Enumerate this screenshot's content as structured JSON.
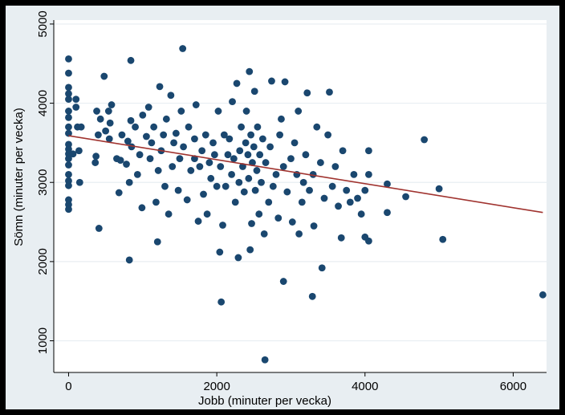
{
  "chart_data": {
    "type": "scatter",
    "xlabel": "Jobb (minuter per vecka)",
    "ylabel": "Sömn (minuter per vecka)",
    "xlim": [
      -200,
      6450
    ],
    "ylim": [
      600,
      5050
    ],
    "xticks": [
      0,
      2000,
      4000,
      6000
    ],
    "yticks": [
      1000,
      2000,
      3000,
      4000,
      5000
    ],
    "grid": "horizontal",
    "legend": "none",
    "colors": {
      "points": "#1a476f",
      "fit_line": "#a0332f",
      "background": "#e8eef2",
      "plot_area": "#ffffff",
      "frame": "#000000"
    },
    "fit_line": {
      "x": [
        0,
        6400
      ],
      "y": [
        3590,
        2620
      ]
    },
    "series": [
      {
        "values": [
          [
            0,
            4560
          ],
          [
            0,
            4380
          ],
          [
            0,
            4200
          ],
          [
            0,
            4120
          ],
          [
            0,
            4050
          ],
          [
            0,
            3900
          ],
          [
            0,
            3820
          ],
          [
            0,
            3700
          ],
          [
            0,
            3620
          ],
          [
            0,
            3480
          ],
          [
            0,
            3420
          ],
          [
            0,
            3360
          ],
          [
            0,
            3300
          ],
          [
            0,
            3220
          ],
          [
            0,
            3100
          ],
          [
            0,
            3020
          ],
          [
            0,
            2960
          ],
          [
            0,
            2780
          ],
          [
            0,
            2720
          ],
          [
            0,
            2660
          ],
          [
            60,
            3360
          ],
          [
            100,
            4050
          ],
          [
            100,
            3950
          ],
          [
            120,
            3700
          ],
          [
            140,
            3400
          ],
          [
            150,
            3000
          ],
          [
            170,
            3700
          ],
          [
            360,
            3250
          ],
          [
            370,
            3330
          ],
          [
            380,
            3900
          ],
          [
            400,
            3600
          ],
          [
            410,
            2420
          ],
          [
            430,
            3800
          ],
          [
            480,
            4340
          ],
          [
            500,
            3650
          ],
          [
            540,
            3900
          ],
          [
            550,
            3550
          ],
          [
            560,
            3750
          ],
          [
            580,
            3980
          ],
          [
            650,
            3300
          ],
          [
            680,
            2870
          ],
          [
            700,
            3280
          ],
          [
            720,
            3600
          ],
          [
            780,
            3230
          ],
          [
            800,
            3520
          ],
          [
            820,
            2020
          ],
          [
            820,
            3000
          ],
          [
            840,
            3780
          ],
          [
            840,
            4540
          ],
          [
            850,
            3450
          ],
          [
            900,
            3700
          ],
          [
            930,
            3100
          ],
          [
            960,
            3350
          ],
          [
            990,
            2680
          ],
          [
            1000,
            3850
          ],
          [
            1050,
            3580
          ],
          [
            1080,
            3950
          ],
          [
            1100,
            3300
          ],
          [
            1120,
            3500
          ],
          [
            1150,
            3700
          ],
          [
            1180,
            2750
          ],
          [
            1200,
            2250
          ],
          [
            1210,
            3150
          ],
          [
            1230,
            4210
          ],
          [
            1250,
            3400
          ],
          [
            1280,
            3600
          ],
          [
            1300,
            2950
          ],
          [
            1320,
            3800
          ],
          [
            1350,
            2600
          ],
          [
            1380,
            4100
          ],
          [
            1400,
            3200
          ],
          [
            1420,
            3500
          ],
          [
            1450,
            3620
          ],
          [
            1480,
            2900
          ],
          [
            1500,
            3300
          ],
          [
            1520,
            3900
          ],
          [
            1540,
            4690
          ],
          [
            1550,
            3450
          ],
          [
            1600,
            2780
          ],
          [
            1620,
            3700
          ],
          [
            1650,
            3150
          ],
          [
            1700,
            3300
          ],
          [
            1700,
            3550
          ],
          [
            1720,
            3980
          ],
          [
            1750,
            2510
          ],
          [
            1770,
            3200
          ],
          [
            1800,
            3400
          ],
          [
            1820,
            2850
          ],
          [
            1850,
            3600
          ],
          [
            1870,
            2600
          ],
          [
            1900,
            3250
          ],
          [
            1920,
            3050
          ],
          [
            1950,
            3500
          ],
          [
            1970,
            3350
          ],
          [
            2000,
            2950
          ],
          [
            2020,
            3900
          ],
          [
            2040,
            2120
          ],
          [
            2050,
            3200
          ],
          [
            2060,
            1490
          ],
          [
            2080,
            2460
          ],
          [
            2100,
            3600
          ],
          [
            2120,
            2950
          ],
          [
            2150,
            3350
          ],
          [
            2170,
            3550
          ],
          [
            2200,
            3100
          ],
          [
            2210,
            4020
          ],
          [
            2230,
            3300
          ],
          [
            2250,
            2750
          ],
          [
            2270,
            4250
          ],
          [
            2290,
            2050
          ],
          [
            2300,
            3000
          ],
          [
            2310,
            3400
          ],
          [
            2330,
            3700
          ],
          [
            2350,
            3200
          ],
          [
            2370,
            2880
          ],
          [
            2390,
            3500
          ],
          [
            2400,
            3900
          ],
          [
            2420,
            3350
          ],
          [
            2430,
            3050
          ],
          [
            2440,
            4400
          ],
          [
            2450,
            2150
          ],
          [
            2460,
            3600
          ],
          [
            2470,
            2480
          ],
          [
            2480,
            3250
          ],
          [
            2500,
            3450
          ],
          [
            2510,
            4150
          ],
          [
            2520,
            2900
          ],
          [
            2540,
            3150
          ],
          [
            2550,
            3700
          ],
          [
            2570,
            2600
          ],
          [
            2580,
            3350
          ],
          [
            2600,
            3000
          ],
          [
            2620,
            3550
          ],
          [
            2640,
            2350
          ],
          [
            2650,
            760
          ],
          [
            2660,
            3250
          ],
          [
            2700,
            2750
          ],
          [
            2720,
            3450
          ],
          [
            2740,
            4280
          ],
          [
            2760,
            2950
          ],
          [
            2800,
            3100
          ],
          [
            2830,
            2550
          ],
          [
            2850,
            3600
          ],
          [
            2870,
            3800
          ],
          [
            2900,
            1750
          ],
          [
            2900,
            3200
          ],
          [
            2920,
            4270
          ],
          [
            2950,
            2880
          ],
          [
            3000,
            3300
          ],
          [
            3020,
            2500
          ],
          [
            3050,
            3500
          ],
          [
            3080,
            3100
          ],
          [
            3100,
            3900
          ],
          [
            3110,
            2350
          ],
          [
            3150,
            2750
          ],
          [
            3170,
            3000
          ],
          [
            3200,
            3350
          ],
          [
            3220,
            4130
          ],
          [
            3250,
            2900
          ],
          [
            3290,
            1560
          ],
          [
            3300,
            3100
          ],
          [
            3310,
            2450
          ],
          [
            3350,
            3700
          ],
          [
            3400,
            3250
          ],
          [
            3420,
            1920
          ],
          [
            3450,
            2800
          ],
          [
            3500,
            3600
          ],
          [
            3520,
            4140
          ],
          [
            3560,
            2950
          ],
          [
            3600,
            3200
          ],
          [
            3640,
            2700
          ],
          [
            3680,
            2300
          ],
          [
            3700,
            3400
          ],
          [
            3750,
            2900
          ],
          [
            3800,
            2750
          ],
          [
            3850,
            3100
          ],
          [
            3900,
            2800
          ],
          [
            3950,
            2600
          ],
          [
            4000,
            2900
          ],
          [
            4000,
            2310
          ],
          [
            4050,
            3400
          ],
          [
            4050,
            2260
          ],
          [
            4050,
            3100
          ],
          [
            4300,
            2980
          ],
          [
            4300,
            2620
          ],
          [
            4550,
            2820
          ],
          [
            4800,
            3540
          ],
          [
            5000,
            2920
          ],
          [
            5050,
            2280
          ],
          [
            6400,
            1580
          ]
        ]
      }
    ]
  }
}
